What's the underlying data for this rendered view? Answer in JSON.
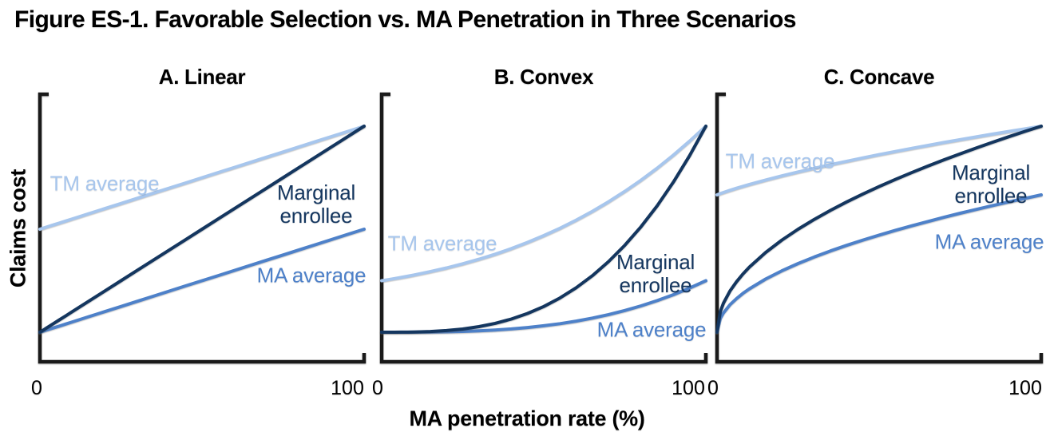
{
  "figure_title": "Figure ES-1. Favorable Selection vs. MA Penetration in Three Scenarios",
  "x_axis_label": "MA penetration rate (%)",
  "y_axis_label": "Claims cost",
  "x_ticks": [
    "0",
    "100"
  ],
  "colors": {
    "tm_average": "#a7c6ed",
    "ma_average": "#4e81c9",
    "marginal_enrollee": "#14365f",
    "axis": "#1a1a1a"
  },
  "chart_data": [
    {
      "type": "line",
      "panel": "A",
      "title": "A. Linear",
      "xlabel": "MA penetration rate (%)",
      "ylabel": "Claims cost",
      "x_range": [
        0,
        100
      ],
      "y_range": [
        0,
        1
      ],
      "y_units": "normalized claims cost (no y ticks shown)",
      "grid": false,
      "legend": "inline curve labels",
      "x": [
        0,
        1,
        2,
        4,
        6,
        8,
        10,
        15,
        20,
        25,
        30,
        35,
        40,
        45,
        50,
        55,
        60,
        65,
        70,
        75,
        80,
        85,
        90,
        95,
        100
      ],
      "series": [
        {
          "name": "TM average",
          "key": "tm_average",
          "values": [
            0.5,
            0.505,
            0.51,
            0.52,
            0.53,
            0.54,
            0.55,
            0.575,
            0.6,
            0.625,
            0.65,
            0.675,
            0.7,
            0.725,
            0.75,
            0.775,
            0.8,
            0.825,
            0.85,
            0.875,
            0.9,
            0.925,
            0.95,
            0.975,
            1
          ]
        },
        {
          "name": "MA average",
          "key": "ma_average",
          "values": [
            0,
            0.005,
            0.01,
            0.02,
            0.03,
            0.04,
            0.05,
            0.075,
            0.1,
            0.125,
            0.15,
            0.175,
            0.2,
            0.225,
            0.25,
            0.275,
            0.3,
            0.325,
            0.35,
            0.375,
            0.4,
            0.425,
            0.45,
            0.475,
            0.5
          ]
        },
        {
          "name": "Marginal enrollee",
          "key": "marginal_enrollee",
          "values": [
            0,
            0.01,
            0.02,
            0.04,
            0.06,
            0.08,
            0.1,
            0.15,
            0.2,
            0.25,
            0.3,
            0.35,
            0.4,
            0.45,
            0.5,
            0.55,
            0.6,
            0.65,
            0.7,
            0.75,
            0.8,
            0.85,
            0.9,
            0.95,
            1
          ]
        }
      ]
    },
    {
      "type": "line",
      "panel": "B",
      "title": "B. Convex",
      "xlabel": "MA penetration rate (%)",
      "ylabel": "Claims cost",
      "x_range": [
        0,
        100
      ],
      "y_range": [
        0,
        1
      ],
      "y_units": "normalized claims cost (no y ticks shown)",
      "grid": false,
      "legend": "inline curve labels",
      "x": [
        0,
        1,
        2,
        4,
        6,
        8,
        10,
        15,
        20,
        25,
        30,
        35,
        40,
        45,
        50,
        55,
        60,
        65,
        70,
        75,
        80,
        85,
        90,
        95,
        100
      ],
      "series": [
        {
          "name": "TM average",
          "key": "tm_average",
          "values": [
            0.25,
            0.2525,
            0.2551,
            0.2604,
            0.266,
            0.2717,
            0.2778,
            0.294,
            0.312,
            0.332,
            0.3543,
            0.3788,
            0.406,
            0.4359,
            0.4688,
            0.5047,
            0.544,
            0.5868,
            0.6333,
            0.6836,
            0.738,
            0.7967,
            0.8598,
            0.9275,
            1
          ]
        },
        {
          "name": "MA average",
          "key": "ma_average",
          "values": [
            0,
            0,
            0,
            0,
            0.0001,
            0.0001,
            0.0003,
            0.0008,
            0.002,
            0.0039,
            0.0068,
            0.0107,
            0.016,
            0.0228,
            0.0313,
            0.0416,
            0.054,
            0.0687,
            0.0858,
            0.1055,
            0.128,
            0.1535,
            0.1823,
            0.2143,
            0.25
          ]
        },
        {
          "name": "Marginal enrollee",
          "key": "marginal_enrollee",
          "values": [
            0,
            0,
            0,
            0.0001,
            0.0002,
            0.0005,
            0.001,
            0.0034,
            0.008,
            0.0156,
            0.027,
            0.0429,
            0.064,
            0.0911,
            0.125,
            0.1664,
            0.216,
            0.2746,
            0.343,
            0.4219,
            0.512,
            0.6141,
            0.729,
            0.8574,
            1
          ]
        }
      ]
    },
    {
      "type": "line",
      "panel": "C",
      "title": "C. Concave",
      "xlabel": "MA penetration rate (%)",
      "ylabel": "Claims cost",
      "x_range": [
        0,
        100
      ],
      "y_range": [
        0,
        1
      ],
      "y_units": "normalized claims cost (no y ticks shown)",
      "grid": false,
      "legend": "inline curve labels",
      "x": [
        0,
        1,
        2,
        4,
        6,
        8,
        10,
        15,
        20,
        25,
        30,
        35,
        40,
        45,
        50,
        55,
        60,
        65,
        70,
        75,
        80,
        85,
        90,
        95,
        100
      ],
      "series": [
        {
          "name": "TM average",
          "key": "tm_average",
          "values": [
            0.6667,
            0.6727,
            0.6783,
            0.6889,
            0.6988,
            0.7082,
            0.7173,
            0.7387,
            0.7588,
            0.7778,
            0.7959,
            0.8132,
            0.83,
            0.8462,
            0.8619,
            0.8773,
            0.8921,
            0.9065,
            0.9208,
            0.9346,
            0.9482,
            0.9617,
            0.9746,
            0.9873,
            1
          ]
        },
        {
          "name": "MA average",
          "key": "ma_average",
          "values": [
            0,
            0.0667,
            0.0943,
            0.1333,
            0.1633,
            0.1886,
            0.2108,
            0.2582,
            0.2981,
            0.3333,
            0.3651,
            0.3944,
            0.4216,
            0.4472,
            0.4714,
            0.4944,
            0.5164,
            0.5374,
            0.5578,
            0.5774,
            0.5963,
            0.6146,
            0.6325,
            0.6498,
            0.6667
          ]
        },
        {
          "name": "Marginal enrollee",
          "key": "marginal_enrollee",
          "values": [
            0,
            0.1,
            0.1414,
            0.2,
            0.2449,
            0.2828,
            0.3162,
            0.3873,
            0.4472,
            0.5,
            0.5477,
            0.5916,
            0.6325,
            0.6708,
            0.7071,
            0.7416,
            0.7746,
            0.8062,
            0.8367,
            0.866,
            0.8944,
            0.922,
            0.9487,
            0.9747,
            1
          ]
        }
      ]
    }
  ]
}
